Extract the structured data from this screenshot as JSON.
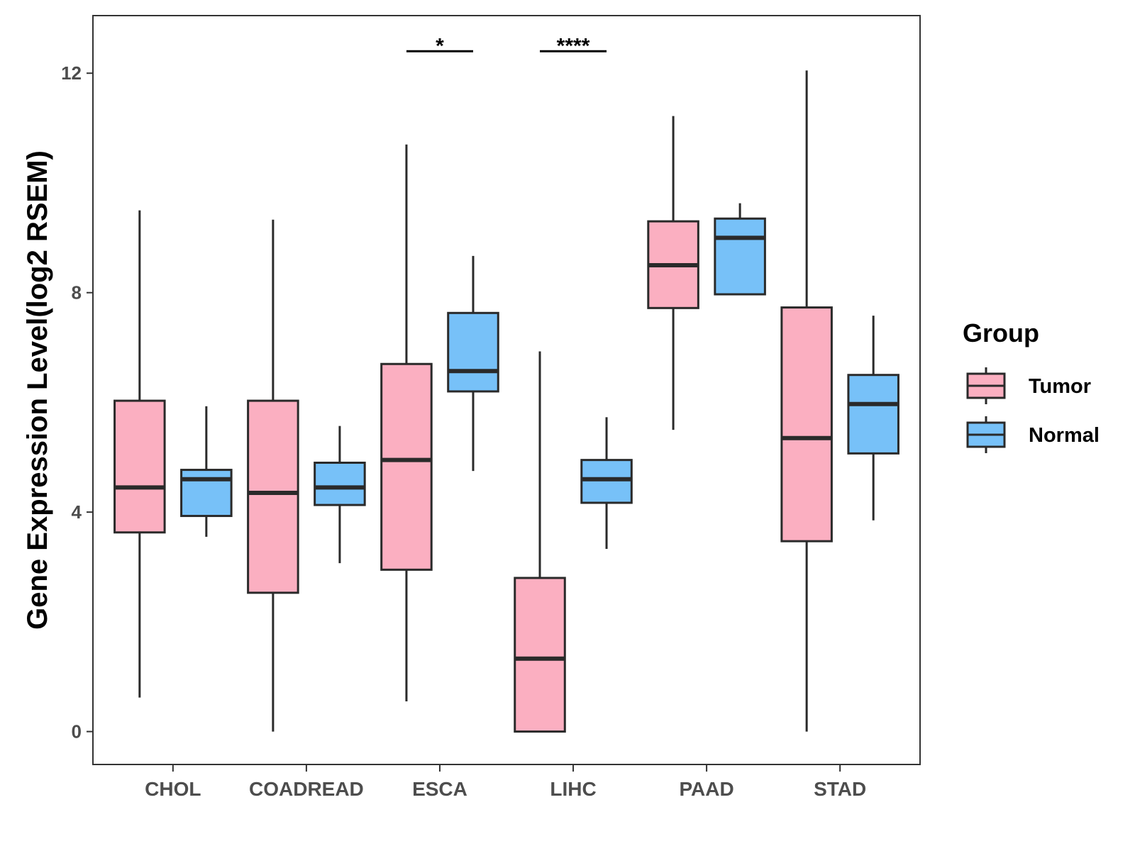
{
  "chart_data": {
    "type": "boxplot",
    "ylabel": "Gene Expression Level(log2 RSEM)",
    "xlabel": "",
    "ylim": [
      -0.6,
      13.05
    ],
    "yticks": [
      0,
      4,
      8,
      12
    ],
    "categories": [
      "CHOL",
      "COADREAD",
      "ESCA",
      "LIHC",
      "PAAD",
      "STAD"
    ],
    "legend": {
      "title": "Group",
      "position": "right",
      "items": [
        {
          "name": "Tumor",
          "color": "#FBAFC1"
        },
        {
          "name": "Normal",
          "color": "#77C1F8"
        }
      ]
    },
    "series": [
      {
        "name": "Tumor",
        "color": "#FBAFC1",
        "boxes": [
          {
            "category": "CHOL",
            "min": 0.62,
            "q1": 3.63,
            "median": 4.45,
            "q3": 6.03,
            "max": 9.5
          },
          {
            "category": "COADREAD",
            "min": 0.0,
            "q1": 2.53,
            "median": 4.35,
            "q3": 6.03,
            "max": 9.33
          },
          {
            "category": "ESCA",
            "min": 0.55,
            "q1": 2.95,
            "median": 4.95,
            "q3": 6.7,
            "max": 10.7
          },
          {
            "category": "LIHC",
            "min": 0.0,
            "q1": 0.0,
            "median": 1.33,
            "q3": 2.8,
            "max": 6.93
          },
          {
            "category": "PAAD",
            "min": 5.5,
            "q1": 7.72,
            "median": 8.5,
            "q3": 9.3,
            "max": 11.22
          },
          {
            "category": "STAD",
            "min": 0.0,
            "q1": 3.47,
            "median": 5.35,
            "q3": 7.73,
            "max": 12.05
          }
        ]
      },
      {
        "name": "Normal",
        "color": "#77C1F8",
        "boxes": [
          {
            "category": "CHOL",
            "min": 3.55,
            "q1": 3.93,
            "median": 4.6,
            "q3": 4.77,
            "max": 5.93
          },
          {
            "category": "COADREAD",
            "min": 3.07,
            "q1": 4.13,
            "median": 4.45,
            "q3": 4.9,
            "max": 5.57
          },
          {
            "category": "ESCA",
            "min": 4.75,
            "q1": 6.2,
            "median": 6.57,
            "q3": 7.63,
            "max": 8.67
          },
          {
            "category": "LIHC",
            "min": 3.33,
            "q1": 4.17,
            "median": 4.6,
            "q3": 4.95,
            "max": 5.73
          },
          {
            "category": "PAAD",
            "min": 7.97,
            "q1": 7.97,
            "median": 9.0,
            "q3": 9.35,
            "max": 9.63
          },
          {
            "category": "STAD",
            "min": 3.85,
            "q1": 5.07,
            "median": 5.97,
            "q3": 6.5,
            "max": 7.58
          }
        ]
      }
    ],
    "annotations": [
      {
        "category": "ESCA",
        "label": "*",
        "y": 12.4
      },
      {
        "category": "LIHC",
        "label": "****",
        "y": 12.4
      }
    ]
  }
}
